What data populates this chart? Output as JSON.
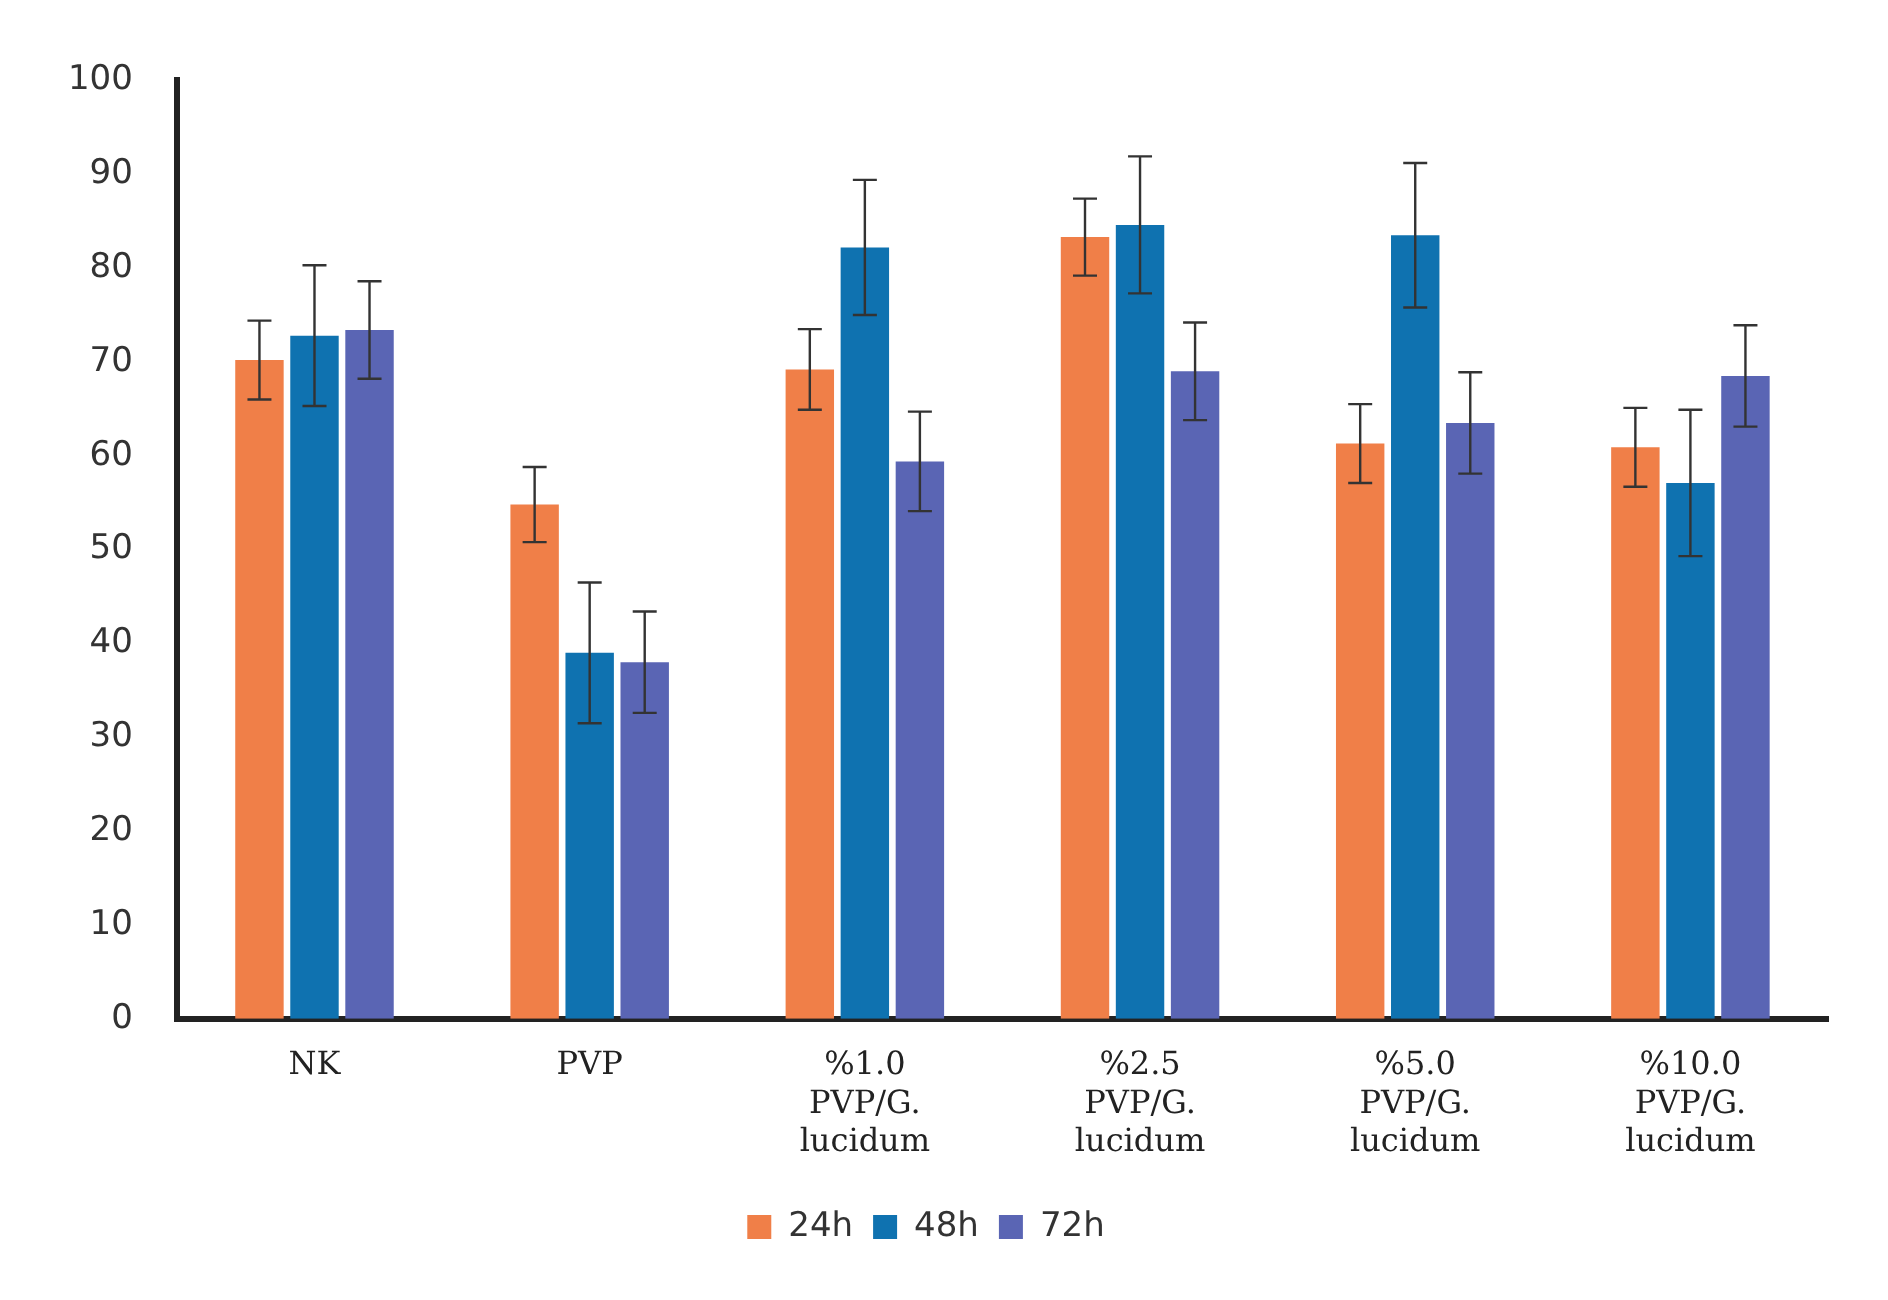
{
  "chart_data": {
    "type": "bar",
    "categories": [
      "NK",
      "PVP",
      "%1.0 PVP/G. lucidum",
      "%2.5 PVP/G. lucidum",
      "%5.0 PVP/G. lucidum",
      "%10.0 PVP/G. lucidum"
    ],
    "series": [
      {
        "name": "24h",
        "color": "#f07f48",
        "values": [
          70.2,
          54.8,
          69.2,
          83.3,
          61.3,
          60.9
        ],
        "errors": [
          4.2,
          4,
          4.3,
          4.1,
          4.2,
          4.2
        ]
      },
      {
        "name": "48h",
        "color": "#0f72b0",
        "values": [
          72.8,
          39.0,
          82.2,
          84.6,
          83.5,
          57.1
        ],
        "errors": [
          7.5,
          7.5,
          7.2,
          7.3,
          7.7,
          7.8
        ]
      },
      {
        "name": "72h",
        "color": "#5a65b4",
        "values": [
          73.4,
          38.0,
          59.4,
          69.0,
          63.5,
          68.5
        ],
        "errors": [
          5.2,
          5.4,
          5.3,
          5.2,
          5.4,
          5.4
        ]
      }
    ],
    "ylim": [
      0,
      100
    ],
    "yticks": [
      0,
      10,
      20,
      30,
      40,
      50,
      60,
      70,
      80,
      90,
      100
    ],
    "grid": false,
    "legend": "bottom"
  }
}
